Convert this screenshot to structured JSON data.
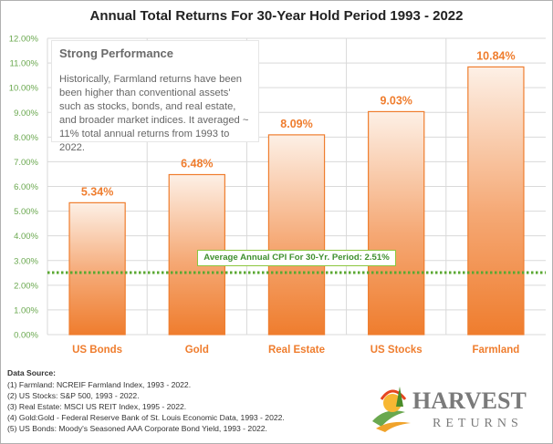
{
  "chart_data": {
    "type": "bar",
    "title": "Annual Total Returns For 30-Year Hold Period 1993 - 2022",
    "categories": [
      "US Bonds",
      "Gold",
      "Real Estate",
      "US Stocks",
      "Farmland"
    ],
    "values": [
      5.34,
      6.48,
      8.09,
      9.03,
      10.84
    ],
    "value_labels": [
      "5.34%",
      "6.48%",
      "8.09%",
      "9.03%",
      "10.84%"
    ],
    "ylim": [
      0,
      12
    ],
    "yticks": [
      "0.00%",
      "1.00%",
      "2.00%",
      "3.00%",
      "4.00%",
      "5.00%",
      "6.00%",
      "7.00%",
      "8.00%",
      "9.00%",
      "10.00%",
      "11.00%",
      "12.00%"
    ],
    "reference_line": {
      "value": 2.51,
      "label": "Average Annual CPI For 30-Yr. Period: 2.51%"
    },
    "grid": true,
    "xlabel": "",
    "ylabel": ""
  },
  "annotation": {
    "title": "Strong Performance",
    "body": "Historically, Farmland returns have been been higher than conventional assets' such as stocks, bonds, and real estate, and broader market indices.  It averaged ~ 11% total annual returns from 1993  to 2022."
  },
  "source": {
    "title": "Data Source:",
    "items": [
      "(1) Farmland: NCREIF Farmland Index, 1993 - 2022.",
      "(2) US Stocks: S&P 500, 1993 - 2022.",
      "(3) Real Estate: MSCI US REIT Index, 1995 - 2022.",
      "(4) Gold:Gold - Federal Reserve Bank of St. Louis Economic Data, 1993 - 2022.",
      "(5) US Bonds: Moody's Seasoned AAA Corporate Bond Yield, 1993 - 2022."
    ]
  },
  "logo": {
    "word1": "HARVEST",
    "word2": "RETURNS"
  },
  "colors": {
    "bar_top": "#fdf0e6",
    "bar_bottom": "#ef7d2e",
    "value_label": "#ef7d2e",
    "category_label": "#ef7d2e",
    "tick_label": "#6aa84f",
    "cpi_line": "#5aa832",
    "grid": "#d9d9d9"
  }
}
